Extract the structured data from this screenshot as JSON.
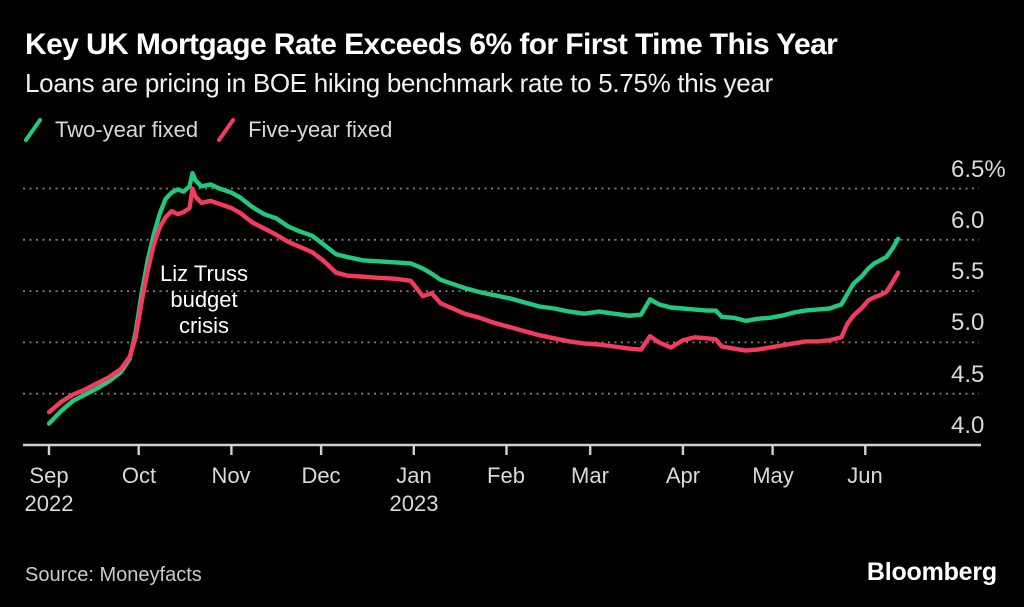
{
  "chart_data": {
    "type": "line",
    "title": "Key UK Mortgage Rate Exceeds 6% for First Time This Year",
    "subtitle": "Loans are pricing in BOE hiking benchmark rate to 5.75% this year",
    "unit": "%",
    "grid": "horizontal-dotted",
    "legend_position": "top-left",
    "ylim": [
      4.0,
      6.75
    ],
    "yticks": [
      {
        "value": 6.5,
        "label": "6.5%"
      },
      {
        "value": 6.0,
        "label": "6.0"
      },
      {
        "value": 5.5,
        "label": "5.5"
      },
      {
        "value": 5.0,
        "label": "5.0"
      },
      {
        "value": 4.5,
        "label": "4.5"
      },
      {
        "value": 4.0,
        "label": "4.0"
      }
    ],
    "xticks": [
      {
        "date": "2022-09-01",
        "label": "Sep",
        "year": "2022"
      },
      {
        "date": "2022-10-01",
        "label": "Oct"
      },
      {
        "date": "2022-11-01",
        "label": "Nov"
      },
      {
        "date": "2022-12-01",
        "label": "Dec"
      },
      {
        "date": "2023-01-01",
        "label": "Jan",
        "year": "2023"
      },
      {
        "date": "2023-02-01",
        "label": "Feb"
      },
      {
        "date": "2023-03-01",
        "label": "Mar"
      },
      {
        "date": "2023-04-01",
        "label": "Apr"
      },
      {
        "date": "2023-05-01",
        "label": "May"
      },
      {
        "date": "2023-06-01",
        "label": "Jun"
      }
    ],
    "annotation": {
      "text": "Liz Truss\nbudget\ncrisis",
      "date": "2022-10-23",
      "value": 5.4
    },
    "x": [
      "2022-09-01",
      "2022-09-05",
      "2022-09-09",
      "2022-09-13",
      "2022-09-17",
      "2022-09-21",
      "2022-09-25",
      "2022-09-28",
      "2022-09-30",
      "2022-10-02",
      "2022-10-04",
      "2022-10-06",
      "2022-10-08",
      "2022-10-10",
      "2022-10-12",
      "2022-10-14",
      "2022-10-16",
      "2022-10-18",
      "2022-10-19",
      "2022-10-20",
      "2022-10-22",
      "2022-10-25",
      "2022-10-28",
      "2022-11-01",
      "2022-11-04",
      "2022-11-08",
      "2022-11-12",
      "2022-11-16",
      "2022-11-20",
      "2022-11-24",
      "2022-11-28",
      "2022-12-02",
      "2022-12-06",
      "2022-12-10",
      "2022-12-15",
      "2022-12-20",
      "2022-12-26",
      "2022-12-31",
      "2023-01-04",
      "2023-01-07",
      "2023-01-10",
      "2023-01-14",
      "2023-01-18",
      "2023-01-23",
      "2023-01-28",
      "2023-02-02",
      "2023-02-07",
      "2023-02-12",
      "2023-02-17",
      "2023-02-22",
      "2023-02-27",
      "2023-03-04",
      "2023-03-09",
      "2023-03-14",
      "2023-03-18",
      "2023-03-21",
      "2023-03-24",
      "2023-03-28",
      "2023-04-01",
      "2023-04-05",
      "2023-04-09",
      "2023-04-12",
      "2023-04-14",
      "2023-04-18",
      "2023-04-22",
      "2023-04-26",
      "2023-04-30",
      "2023-05-04",
      "2023-05-08",
      "2023-05-12",
      "2023-05-16",
      "2023-05-20",
      "2023-05-24",
      "2023-05-26",
      "2023-05-28",
      "2023-05-31",
      "2023-06-02",
      "2023-06-04",
      "2023-06-06",
      "2023-06-08",
      "2023-06-10",
      "2023-06-12"
    ],
    "series": [
      {
        "name": "Two-year fixed",
        "color": "#23c87f",
        "values": [
          4.21,
          4.33,
          4.43,
          4.49,
          4.55,
          4.62,
          4.71,
          4.84,
          5.1,
          5.48,
          5.8,
          6.05,
          6.25,
          6.4,
          6.46,
          6.49,
          6.47,
          6.52,
          6.65,
          6.58,
          6.52,
          6.54,
          6.5,
          6.46,
          6.41,
          6.32,
          6.25,
          6.21,
          6.13,
          6.08,
          6.04,
          5.95,
          5.86,
          5.83,
          5.8,
          5.79,
          5.78,
          5.77,
          5.72,
          5.67,
          5.61,
          5.57,
          5.53,
          5.49,
          5.46,
          5.43,
          5.39,
          5.35,
          5.33,
          5.3,
          5.28,
          5.3,
          5.28,
          5.26,
          5.27,
          5.42,
          5.37,
          5.34,
          5.33,
          5.32,
          5.31,
          5.31,
          5.25,
          5.24,
          5.21,
          5.23,
          5.24,
          5.26,
          5.29,
          5.31,
          5.32,
          5.33,
          5.37,
          5.47,
          5.57,
          5.65,
          5.72,
          5.77,
          5.8,
          5.83,
          5.91,
          6.01
        ]
      },
      {
        "name": "Five-year fixed",
        "color": "#f43a5f",
        "values": [
          4.32,
          4.42,
          4.49,
          4.54,
          4.6,
          4.66,
          4.74,
          4.86,
          5.05,
          5.4,
          5.7,
          5.95,
          6.12,
          6.22,
          6.28,
          6.25,
          6.27,
          6.31,
          6.5,
          6.42,
          6.36,
          6.38,
          6.35,
          6.31,
          6.26,
          6.17,
          6.11,
          6.05,
          5.98,
          5.93,
          5.88,
          5.79,
          5.68,
          5.65,
          5.64,
          5.63,
          5.62,
          5.6,
          5.45,
          5.48,
          5.38,
          5.33,
          5.28,
          5.24,
          5.19,
          5.15,
          5.11,
          5.07,
          5.04,
          5.01,
          4.99,
          4.98,
          4.96,
          4.94,
          4.93,
          5.06,
          5.0,
          4.95,
          5.02,
          5.05,
          5.04,
          5.03,
          4.96,
          4.94,
          4.92,
          4.93,
          4.95,
          4.97,
          4.99,
          5.01,
          5.01,
          5.02,
          5.05,
          5.18,
          5.26,
          5.34,
          5.41,
          5.44,
          5.46,
          5.49,
          5.58,
          5.68
        ]
      }
    ]
  },
  "footer": {
    "source": "Source: Moneyfacts",
    "brand": "Bloomberg"
  },
  "theme": {
    "background": "#000000",
    "title_color": "#ffffff",
    "label_color": "#d9d9d9",
    "grid_color": "#7f7f7f",
    "axis_color": "#d0d0d0",
    "annotation_color": "#ffffff"
  }
}
